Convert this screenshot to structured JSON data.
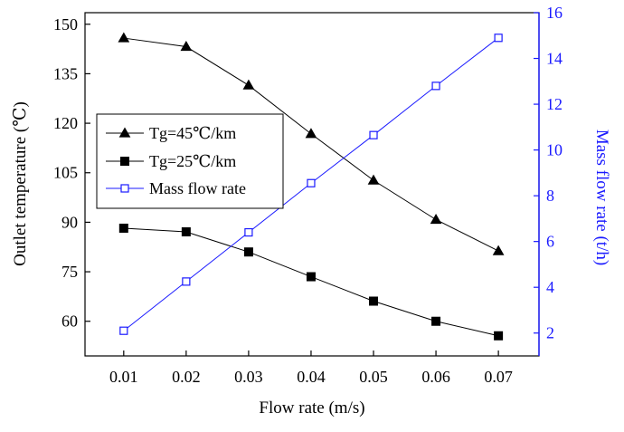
{
  "chart_data": {
    "type": "line",
    "x": [
      0.01,
      0.02,
      0.03,
      0.04,
      0.05,
      0.06,
      0.07
    ],
    "x_ticks": [
      "0.01",
      "0.02",
      "0.03",
      "0.04",
      "0.05",
      "0.06",
      "0.07"
    ],
    "xlabel": "Flow rate (m/s)",
    "xlim": [
      0.0038,
      0.0765
    ],
    "ylabel_left": "Outlet temperature (℃)",
    "ylim_left": [
      49.5,
      153.5
    ],
    "yticks_left": [
      60,
      75,
      90,
      105,
      120,
      135,
      150
    ],
    "ylabel_right": "Mass flow rate (t/h)",
    "ylim_right": [
      1,
      16
    ],
    "yticks_right": [
      2,
      4,
      6,
      8,
      10,
      12,
      14,
      16
    ],
    "grid": false,
    "legend_position": "center-left",
    "series": [
      {
        "name": "Tg=45℃/km",
        "axis": "left",
        "marker": "triangle-filled",
        "color": "#000000",
        "values": [
          145.8,
          143.2,
          131.5,
          116.8,
          102.7,
          90.8,
          81.3
        ]
      },
      {
        "name": "Tg=25℃/km",
        "axis": "left",
        "marker": "square-filled",
        "color": "#000000",
        "values": [
          88.2,
          87.1,
          81.0,
          73.5,
          66.1,
          60.0,
          55.6
        ]
      },
      {
        "name": "Mass flow rate",
        "axis": "right",
        "marker": "square-open",
        "color": "#1a1aff",
        "values": [
          2.1,
          4.25,
          6.4,
          8.55,
          10.65,
          12.8,
          14.9
        ]
      }
    ]
  }
}
